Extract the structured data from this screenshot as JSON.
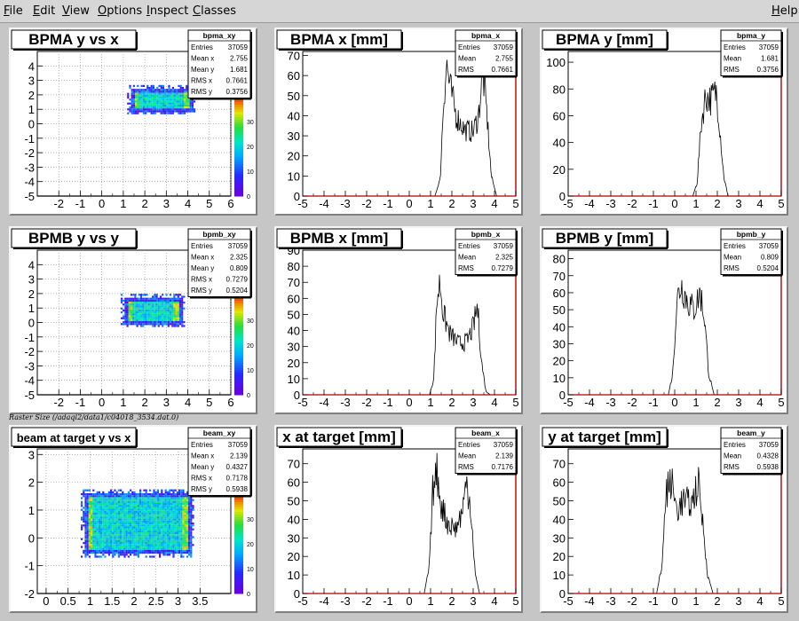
{
  "menu": {
    "file": "File",
    "edit": "Edit",
    "view": "View",
    "options": "Options",
    "inspect": "Inspect",
    "classes": "Classes",
    "help": "Help"
  },
  "raster_label": "Raster Size (/adaql2/data1/c04018_3534.dat.0)",
  "colors": {
    "frame": "#c6c6c6",
    "axis": "#b40000",
    "hist": "#000000"
  },
  "chart_data": [
    {
      "type": "heatmap",
      "title": "BPMA y vs x",
      "stats_name": "bpma_xy",
      "stats": [
        [
          "Entries",
          "37059"
        ],
        [
          "Mean x",
          "2.755"
        ],
        [
          "Mean y",
          "1.681"
        ],
        [
          "RMS x",
          "0.7661"
        ],
        [
          "RMS y",
          "0.3756"
        ]
      ],
      "xlim": [
        -3,
        6
      ],
      "ylim": [
        -5,
        5
      ],
      "xticks": [
        -2,
        -1,
        0,
        1,
        2,
        3,
        4,
        5,
        6
      ],
      "yticks": [
        -5,
        -4,
        -3,
        -2,
        -1,
        0,
        1,
        2,
        3,
        4
      ],
      "blob": {
        "x": [
          1.3,
          4.2
        ],
        "y": [
          0.9,
          2.5
        ]
      },
      "zticks": [
        "0",
        "10",
        "20",
        "30"
      ],
      "zmax": 40
    },
    {
      "type": "histogram",
      "title": "BPMA x [mm]",
      "stats_name": "bpma_x",
      "stats": [
        [
          "Entries",
          "37059"
        ],
        [
          "Mean",
          "2.755"
        ],
        [
          "RMS",
          "0.7661"
        ]
      ],
      "xlim": [
        -5,
        5
      ],
      "ylim": [
        0,
        72
      ],
      "xticks": [
        -5,
        -4,
        -3,
        -2,
        -1,
        0,
        1,
        2,
        3,
        4,
        5
      ],
      "yticks": [
        0,
        10,
        20,
        30,
        40,
        50,
        60,
        70
      ],
      "profile": [
        [
          1.2,
          0
        ],
        [
          1.45,
          8
        ],
        [
          1.6,
          45
        ],
        [
          1.75,
          66
        ],
        [
          1.9,
          55
        ],
        [
          2.2,
          40
        ],
        [
          2.6,
          33
        ],
        [
          3.0,
          32
        ],
        [
          3.25,
          40
        ],
        [
          3.45,
          62
        ],
        [
          3.65,
          40
        ],
        [
          3.85,
          10
        ],
        [
          4.1,
          0
        ]
      ]
    },
    {
      "type": "histogram",
      "title": "BPMA y [mm]",
      "stats_name": "bpma_y",
      "stats": [
        [
          "Entries",
          "37059"
        ],
        [
          "Mean",
          "1.681"
        ],
        [
          "RMS",
          "0.3756"
        ]
      ],
      "xlim": [
        -5,
        5
      ],
      "ylim": [
        0,
        108
      ],
      "xticks": [
        -5,
        -4,
        -3,
        -2,
        -1,
        0,
        1,
        2,
        3,
        4,
        5
      ],
      "yticks": [
        0,
        20,
        40,
        60,
        80,
        100
      ],
      "profile": [
        [
          0.85,
          0
        ],
        [
          1.05,
          10
        ],
        [
          1.25,
          55
        ],
        [
          1.45,
          75
        ],
        [
          1.7,
          72
        ],
        [
          1.95,
          78
        ],
        [
          2.1,
          55
        ],
        [
          2.3,
          15
        ],
        [
          2.5,
          0
        ]
      ]
    },
    {
      "type": "heatmap",
      "title": "BPMB y vs y",
      "stats_name": "bpmb_xy",
      "stats": [
        [
          "Entries",
          "37059"
        ],
        [
          "Mean x",
          "2.325"
        ],
        [
          "Mean y",
          "0.809"
        ],
        [
          "RMS x",
          "0.7279"
        ],
        [
          "RMS y",
          "0.5204"
        ]
      ],
      "xlim": [
        -3,
        6
      ],
      "ylim": [
        -5,
        5
      ],
      "xticks": [
        -2,
        -1,
        0,
        1,
        2,
        3,
        4,
        5,
        6
      ],
      "yticks": [
        -5,
        -4,
        -3,
        -2,
        -1,
        0,
        1,
        2,
        3,
        4
      ],
      "blob": {
        "x": [
          1.0,
          3.7
        ],
        "y": [
          -0.1,
          1.8
        ]
      },
      "zticks": [
        "0",
        "10",
        "20",
        "30"
      ],
      "zmax": 40
    },
    {
      "type": "histogram",
      "title": "BPMB x [mm]",
      "stats_name": "bpmb_x",
      "stats": [
        [
          "Entries",
          "37059"
        ],
        [
          "Mean",
          "2.325"
        ],
        [
          "RMS",
          "0.7279"
        ]
      ],
      "xlim": [
        -5,
        5
      ],
      "ylim": [
        0,
        90
      ],
      "xticks": [
        -5,
        -4,
        -3,
        -2,
        -1,
        0,
        1,
        2,
        3,
        4,
        5
      ],
      "yticks": [
        0,
        10,
        20,
        30,
        40,
        50,
        60,
        70,
        80,
        90
      ],
      "profile": [
        [
          0.95,
          0
        ],
        [
          1.15,
          10
        ],
        [
          1.3,
          60
        ],
        [
          1.45,
          70
        ],
        [
          1.6,
          50
        ],
        [
          1.9,
          38
        ],
        [
          2.3,
          32
        ],
        [
          2.7,
          33
        ],
        [
          3.0,
          42
        ],
        [
          3.2,
          55
        ],
        [
          3.4,
          20
        ],
        [
          3.6,
          2
        ],
        [
          3.8,
          0
        ]
      ]
    },
    {
      "type": "histogram",
      "title": "BPMB y [mm]",
      "stats_name": "bpmb_y",
      "stats": [
        [
          "Entries",
          "37059"
        ],
        [
          "Mean",
          "0.809"
        ],
        [
          "RMS",
          "0.5204"
        ]
      ],
      "xlim": [
        -5,
        5
      ],
      "ylim": [
        0,
        85
      ],
      "xticks": [
        -5,
        -4,
        -3,
        -2,
        -1,
        0,
        1,
        2,
        3,
        4,
        5
      ],
      "yticks": [
        0,
        10,
        20,
        30,
        40,
        50,
        60,
        70,
        80
      ],
      "profile": [
        [
          -0.3,
          0
        ],
        [
          -0.1,
          12
        ],
        [
          0.1,
          55
        ],
        [
          0.3,
          65
        ],
        [
          0.6,
          55
        ],
        [
          0.9,
          50
        ],
        [
          1.2,
          60
        ],
        [
          1.4,
          45
        ],
        [
          1.6,
          12
        ],
        [
          1.85,
          0
        ]
      ]
    },
    {
      "type": "heatmap",
      "title": "beam at target y vs x",
      "stats_name": "beam_xy",
      "stats": [
        [
          "Entries",
          "37059"
        ],
        [
          "Mean x",
          "2.139"
        ],
        [
          "Mean y",
          "0.4327"
        ],
        [
          "RMS x",
          "0.7178"
        ],
        [
          "RMS y",
          "0.5938"
        ]
      ],
      "xlim": [
        -0.2,
        4.2
      ],
      "ylim": [
        -2,
        3.2
      ],
      "xticks": [
        0,
        0.5,
        1,
        1.5,
        2,
        2.5,
        3,
        3.5
      ],
      "yticks": [
        -2,
        -1,
        0,
        1,
        2,
        3
      ],
      "blob": {
        "x": [
          0.85,
          3.3
        ],
        "y": [
          -0.55,
          1.65
        ]
      },
      "zticks": [
        "0",
        "10",
        "20",
        "30"
      ],
      "zmax": 40
    },
    {
      "type": "histogram",
      "title": "x at target [mm]",
      "stats_name": "beam_x",
      "stats": [
        [
          "Entries",
          "37059"
        ],
        [
          "Mean",
          "2.139"
        ],
        [
          "RMS",
          "0.7176"
        ]
      ],
      "xlim": [
        -5,
        5
      ],
      "ylim": [
        0,
        78
      ],
      "xticks": [
        -5,
        -4,
        -3,
        -2,
        -1,
        0,
        1,
        2,
        3,
        4,
        5
      ],
      "yticks": [
        0,
        10,
        20,
        30,
        40,
        50,
        60,
        70
      ],
      "profile": [
        [
          0.7,
          0
        ],
        [
          0.95,
          15
        ],
        [
          1.1,
          55
        ],
        [
          1.3,
          65
        ],
        [
          1.5,
          48
        ],
        [
          1.8,
          38
        ],
        [
          2.2,
          35
        ],
        [
          2.5,
          45
        ],
        [
          2.7,
          60
        ],
        [
          2.9,
          45
        ],
        [
          3.1,
          10
        ],
        [
          3.3,
          0
        ]
      ]
    },
    {
      "type": "histogram",
      "title": "y at target [mm]",
      "stats_name": "beam_y",
      "stats": [
        [
          "Entries",
          "37059"
        ],
        [
          "Mean",
          "0.4328"
        ],
        [
          "RMS",
          "0.5938"
        ]
      ],
      "xlim": [
        -5,
        5
      ],
      "ylim": [
        0,
        78
      ],
      "xticks": [
        -5,
        -4,
        -3,
        -2,
        -1,
        0,
        1,
        2,
        3,
        4,
        5
      ],
      "yticks": [
        0,
        10,
        20,
        30,
        40,
        50,
        60,
        70
      ],
      "profile": [
        [
          -0.85,
          0
        ],
        [
          -0.6,
          15
        ],
        [
          -0.4,
          55
        ],
        [
          -0.15,
          60
        ],
        [
          0.1,
          45
        ],
        [
          0.4,
          50
        ],
        [
          0.8,
          48
        ],
        [
          1.1,
          60
        ],
        [
          1.3,
          40
        ],
        [
          1.55,
          10
        ],
        [
          1.8,
          0
        ]
      ]
    }
  ]
}
